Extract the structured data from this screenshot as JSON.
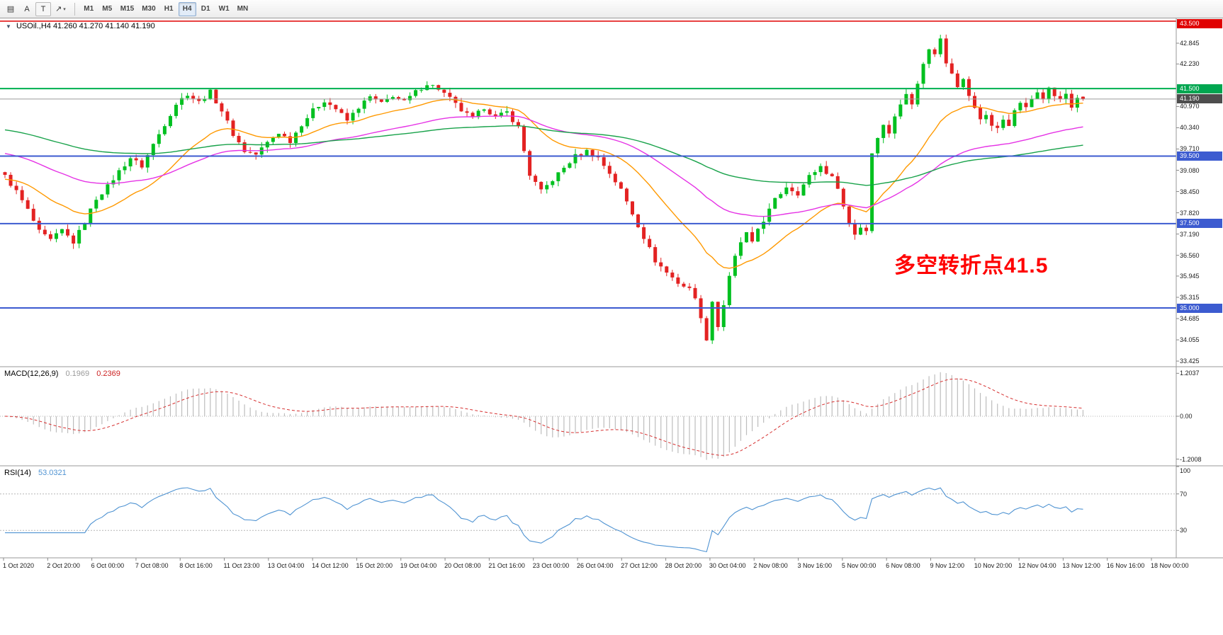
{
  "toolbar": {
    "caret_glyph": "▾",
    "tools": [
      {
        "name": "windows-tile-button",
        "glyph": "▤"
      },
      {
        "name": "cursor-tool-button",
        "glyph": "A"
      },
      {
        "name": "text-tool-button",
        "glyph": "T",
        "boxed": true
      },
      {
        "name": "draw-tools-dropdown-button",
        "glyph": "↗",
        "caret": true
      }
    ],
    "timeframes": [
      "M1",
      "M5",
      "M15",
      "M30",
      "H1",
      "H4",
      "D1",
      "W1",
      "MN"
    ],
    "active_timeframe": "H4"
  },
  "main_chart": {
    "header": {
      "caret_glyph": "▼",
      "text": "USOil.,H4 41.260 41.270 41.140 41.190"
    },
    "annotation": {
      "text": "多空转折点41.5",
      "color": "#ff0000"
    },
    "price_axis": {
      "ticks": [
        "42.845",
        "42.230",
        "40.970",
        "40.340",
        "39.710",
        "39.080",
        "38.450",
        "37.820",
        "37.190",
        "36.560",
        "35.945",
        "35.315",
        "34.685",
        "34.055",
        "33.425"
      ],
      "badges": [
        {
          "label": "43.500",
          "price": 43.5,
          "color": "#e00000"
        },
        {
          "label": "41.500",
          "price": 41.5,
          "color": "#00a650"
        },
        {
          "label": "41.190",
          "price": 41.19,
          "color": "#4d4d4d"
        },
        {
          "label": "39.500",
          "price": 39.5,
          "color": "#3c5bd0"
        },
        {
          "label": "37.500",
          "price": 37.5,
          "color": "#3c5bd0"
        },
        {
          "label": "35.000",
          "price": 35.0,
          "color": "#3c5bd0"
        }
      ]
    },
    "levels": [
      {
        "price": 43.5,
        "color": "#e00000",
        "width": 1.5
      },
      {
        "price": 41.5,
        "color": "#00b050",
        "width": 2
      },
      {
        "price": 39.5,
        "color": "#3c5bd0",
        "width": 2
      },
      {
        "price": 37.5,
        "color": "#3c5bd0",
        "width": 2
      },
      {
        "price": 35.0,
        "color": "#3c5bd0",
        "width": 2
      }
    ],
    "current_price": {
      "value": 41.19,
      "line_color": "#9a9a9a"
    }
  },
  "indicators": {
    "macd": {
      "label": "MACD(12,26,9)",
      "main_value": "0.1969",
      "signal_value": "0.2369",
      "axis_labels": [
        "1.2037",
        "0.00",
        "-1.2008"
      ],
      "fast": 12,
      "slow": 26,
      "signal": 9,
      "histogram_color": "#bdbdbd",
      "signal_color": "#d63030"
    },
    "rsi": {
      "label": "RSI(14)",
      "value": "53.0321",
      "axis_labels": [
        "100",
        "70",
        "30"
      ],
      "period": 14,
      "levels": [
        70,
        30
      ],
      "line_color": "#4f93d2"
    }
  },
  "time_axis": {
    "labels": [
      "1 Oct 2020",
      "2 Oct 20:00",
      "6 Oct 00:00",
      "7 Oct 08:00",
      "8 Oct 16:00",
      "11 Oct 23:00",
      "13 Oct 04:00",
      "14 Oct 12:00",
      "15 Oct 20:00",
      "19 Oct 04:00",
      "20 Oct 08:00",
      "21 Oct 16:00",
      "23 Oct 00:00",
      "26 Oct 04:00",
      "27 Oct 12:00",
      "28 Oct 20:00",
      "30 Oct 04:00",
      "2 Nov 08:00",
      "3 Nov 16:00",
      "5 Nov 00:00",
      "6 Nov 08:00",
      "9 Nov 12:00",
      "10 Nov 20:00",
      "12 Nov 04:00",
      "13 Nov 12:00",
      "16 Nov 16:00",
      "18 Nov 00:00"
    ]
  },
  "chart_data": {
    "type": "candlestick",
    "symbol": "USOil",
    "timeframe": "H4",
    "bar_count": 190,
    "last_candle": {
      "open": 41.26,
      "high": 41.27,
      "low": 41.14,
      "close": 41.19
    },
    "price_range": [
      33.28,
      43.58
    ],
    "close_anchors": [
      [
        0,
        38.9
      ],
      [
        2,
        38.45
      ],
      [
        4,
        37.9
      ],
      [
        6,
        37.25
      ],
      [
        8,
        37.0
      ],
      [
        10,
        37.3
      ],
      [
        12,
        36.95
      ],
      [
        14,
        37.55
      ],
      [
        16,
        38.25
      ],
      [
        18,
        38.6
      ],
      [
        20,
        39.05
      ],
      [
        22,
        39.45
      ],
      [
        24,
        39.2
      ],
      [
        26,
        39.85
      ],
      [
        28,
        40.45
      ],
      [
        30,
        41.05
      ],
      [
        32,
        41.35
      ],
      [
        34,
        41.1
      ],
      [
        36,
        41.4
      ],
      [
        38,
        40.85
      ],
      [
        40,
        40.15
      ],
      [
        42,
        39.65
      ],
      [
        44,
        39.55
      ],
      [
        46,
        39.9
      ],
      [
        48,
        40.2
      ],
      [
        50,
        39.95
      ],
      [
        52,
        40.45
      ],
      [
        54,
        40.85
      ],
      [
        56,
        41.15
      ],
      [
        58,
        40.9
      ],
      [
        60,
        40.55
      ],
      [
        62,
        40.95
      ],
      [
        64,
        41.25
      ],
      [
        66,
        41.05
      ],
      [
        68,
        41.3
      ],
      [
        70,
        41.1
      ],
      [
        72,
        41.4
      ],
      [
        74,
        41.65
      ],
      [
        76,
        41.5
      ],
      [
        78,
        41.2
      ],
      [
        80,
        40.85
      ],
      [
        82,
        40.6
      ],
      [
        84,
        40.95
      ],
      [
        86,
        40.65
      ],
      [
        88,
        40.8
      ],
      [
        90,
        40.35
      ],
      [
        92,
        38.95
      ],
      [
        94,
        38.45
      ],
      [
        96,
        38.8
      ],
      [
        98,
        39.15
      ],
      [
        100,
        39.5
      ],
      [
        102,
        39.65
      ],
      [
        104,
        39.45
      ],
      [
        106,
        39.0
      ],
      [
        108,
        38.5
      ],
      [
        110,
        37.8
      ],
      [
        112,
        37.1
      ],
      [
        114,
        36.4
      ],
      [
        116,
        36.05
      ],
      [
        118,
        35.75
      ],
      [
        120,
        35.55
      ],
      [
        121,
        35.35
      ],
      [
        122,
        34.65
      ],
      [
        123,
        34.1
      ],
      [
        124,
        35.2
      ],
      [
        125,
        34.45
      ],
      [
        126,
        35.1
      ],
      [
        127,
        35.9
      ],
      [
        128,
        36.5
      ],
      [
        129,
        36.95
      ],
      [
        130,
        37.2
      ],
      [
        131,
        36.9
      ],
      [
        132,
        37.35
      ],
      [
        133,
        37.6
      ],
      [
        135,
        38.2
      ],
      [
        137,
        38.6
      ],
      [
        139,
        38.4
      ],
      [
        141,
        38.9
      ],
      [
        143,
        39.2
      ],
      [
        145,
        38.85
      ],
      [
        146,
        38.6
      ],
      [
        147,
        38.0
      ],
      [
        148,
        37.5
      ],
      [
        149,
        37.2
      ],
      [
        150,
        37.4
      ],
      [
        151,
        37.3
      ],
      [
        152,
        39.6
      ],
      [
        153,
        40.1
      ],
      [
        154,
        40.4
      ],
      [
        155,
        40.2
      ],
      [
        156,
        40.7
      ],
      [
        157,
        41.0
      ],
      [
        158,
        41.35
      ],
      [
        159,
        41.1
      ],
      [
        160,
        41.7
      ],
      [
        161,
        42.2
      ],
      [
        162,
        42.7
      ],
      [
        163,
        42.5
      ],
      [
        164,
        43.0
      ],
      [
        165,
        42.3
      ],
      [
        166,
        42.0
      ],
      [
        167,
        41.6
      ],
      [
        168,
        41.75
      ],
      [
        169,
        41.3
      ],
      [
        170,
        40.9
      ],
      [
        171,
        40.6
      ],
      [
        172,
        40.75
      ],
      [
        173,
        40.4
      ],
      [
        174,
        40.3
      ],
      [
        175,
        40.6
      ],
      [
        176,
        40.45
      ],
      [
        177,
        40.8
      ],
      [
        178,
        41.1
      ],
      [
        179,
        40.9
      ],
      [
        180,
        41.2
      ],
      [
        181,
        41.45
      ],
      [
        182,
        41.25
      ],
      [
        183,
        41.5
      ],
      [
        184,
        41.3
      ],
      [
        185,
        41.15
      ],
      [
        186,
        41.35
      ],
      [
        187,
        40.95
      ],
      [
        188,
        41.25
      ],
      [
        189,
        41.19
      ]
    ],
    "moving_averages": [
      {
        "name": "fast-ma",
        "period": 21,
        "seed": 38.8,
        "color": "#ff9900"
      },
      {
        "name": "mid-ma",
        "period": 55,
        "seed": 39.6,
        "color": "#e533e5"
      },
      {
        "name": "slow-ma",
        "period": 120,
        "seed": 40.3,
        "color": "#18a24a"
      }
    ],
    "candle_colors": {
      "bull": "#00c020",
      "bear": "#e32222"
    },
    "macd_axis": {
      "max": 1.2037,
      "min": -1.2008
    },
    "rsi_last": 53.0321
  }
}
